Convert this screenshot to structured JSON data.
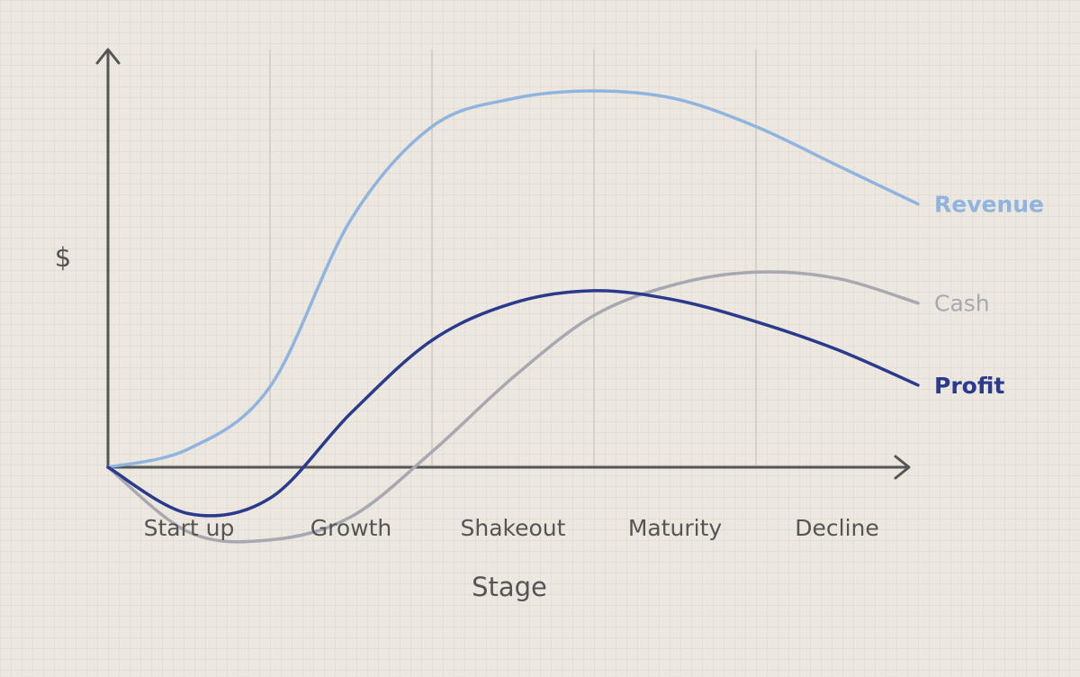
{
  "chart_data": {
    "type": "line",
    "title": "",
    "xlabel": "Stage",
    "ylabel": "$",
    "categories": [
      "Start up",
      "Growth",
      "Shakeout",
      "Maturity",
      "Decline"
    ],
    "category_boundaries": [
      0,
      1,
      2,
      3,
      4,
      5
    ],
    "x": [
      0,
      0.5,
      1,
      1.5,
      2,
      2.5,
      3,
      3.5,
      4,
      4.5,
      5
    ],
    "ylim": [
      -0.5,
      2.6
    ],
    "grid": {
      "vertical_stage_dividers": true,
      "horizontal": false
    },
    "legend": "inline-right",
    "series": [
      {
        "name": "Revenue",
        "color": "#8fb4e0",
        "values": [
          0.0,
          0.12,
          0.52,
          1.6,
          2.2,
          2.38,
          2.43,
          2.38,
          2.2,
          1.95,
          1.7
        ]
      },
      {
        "name": "Cash",
        "color": "#a7a8b2",
        "values": [
          0.0,
          -0.42,
          -0.47,
          -0.32,
          0.1,
          0.58,
          0.98,
          1.18,
          1.26,
          1.22,
          1.06
        ]
      },
      {
        "name": "Profit",
        "color": "#2a3a8c",
        "values": [
          0.0,
          -0.3,
          -0.2,
          0.35,
          0.82,
          1.06,
          1.14,
          1.08,
          0.94,
          0.76,
          0.53
        ]
      }
    ]
  }
}
